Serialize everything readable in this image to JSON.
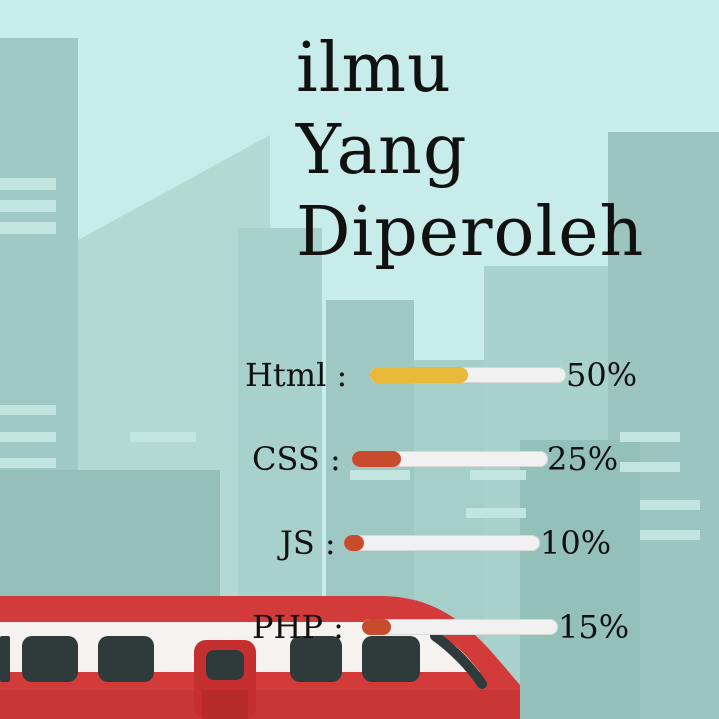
{
  "title": {
    "line1": "ilmu",
    "line2": "Yang",
    "line3": "Diperoleh"
  },
  "skills": [
    {
      "label": "Html :",
      "percent_text": "50%",
      "value": 0.5,
      "color": "#e9b93c"
    },
    {
      "label": "CSS :",
      "percent_text": "25%",
      "value": 0.25,
      "color": "#c94b2d"
    },
    {
      "label": "JS :",
      "percent_text": "10%",
      "value": 0.1,
      "color": "#c94b2d"
    },
    {
      "label": "PHP :",
      "percent_text": "15%",
      "value": 0.15,
      "color": "#c94b2d"
    }
  ],
  "colors": {
    "sky": "#c8ecea",
    "buildings": "#9cc5bf",
    "train_body": "#d33b3b",
    "train_window": "#2f3a3a"
  }
}
